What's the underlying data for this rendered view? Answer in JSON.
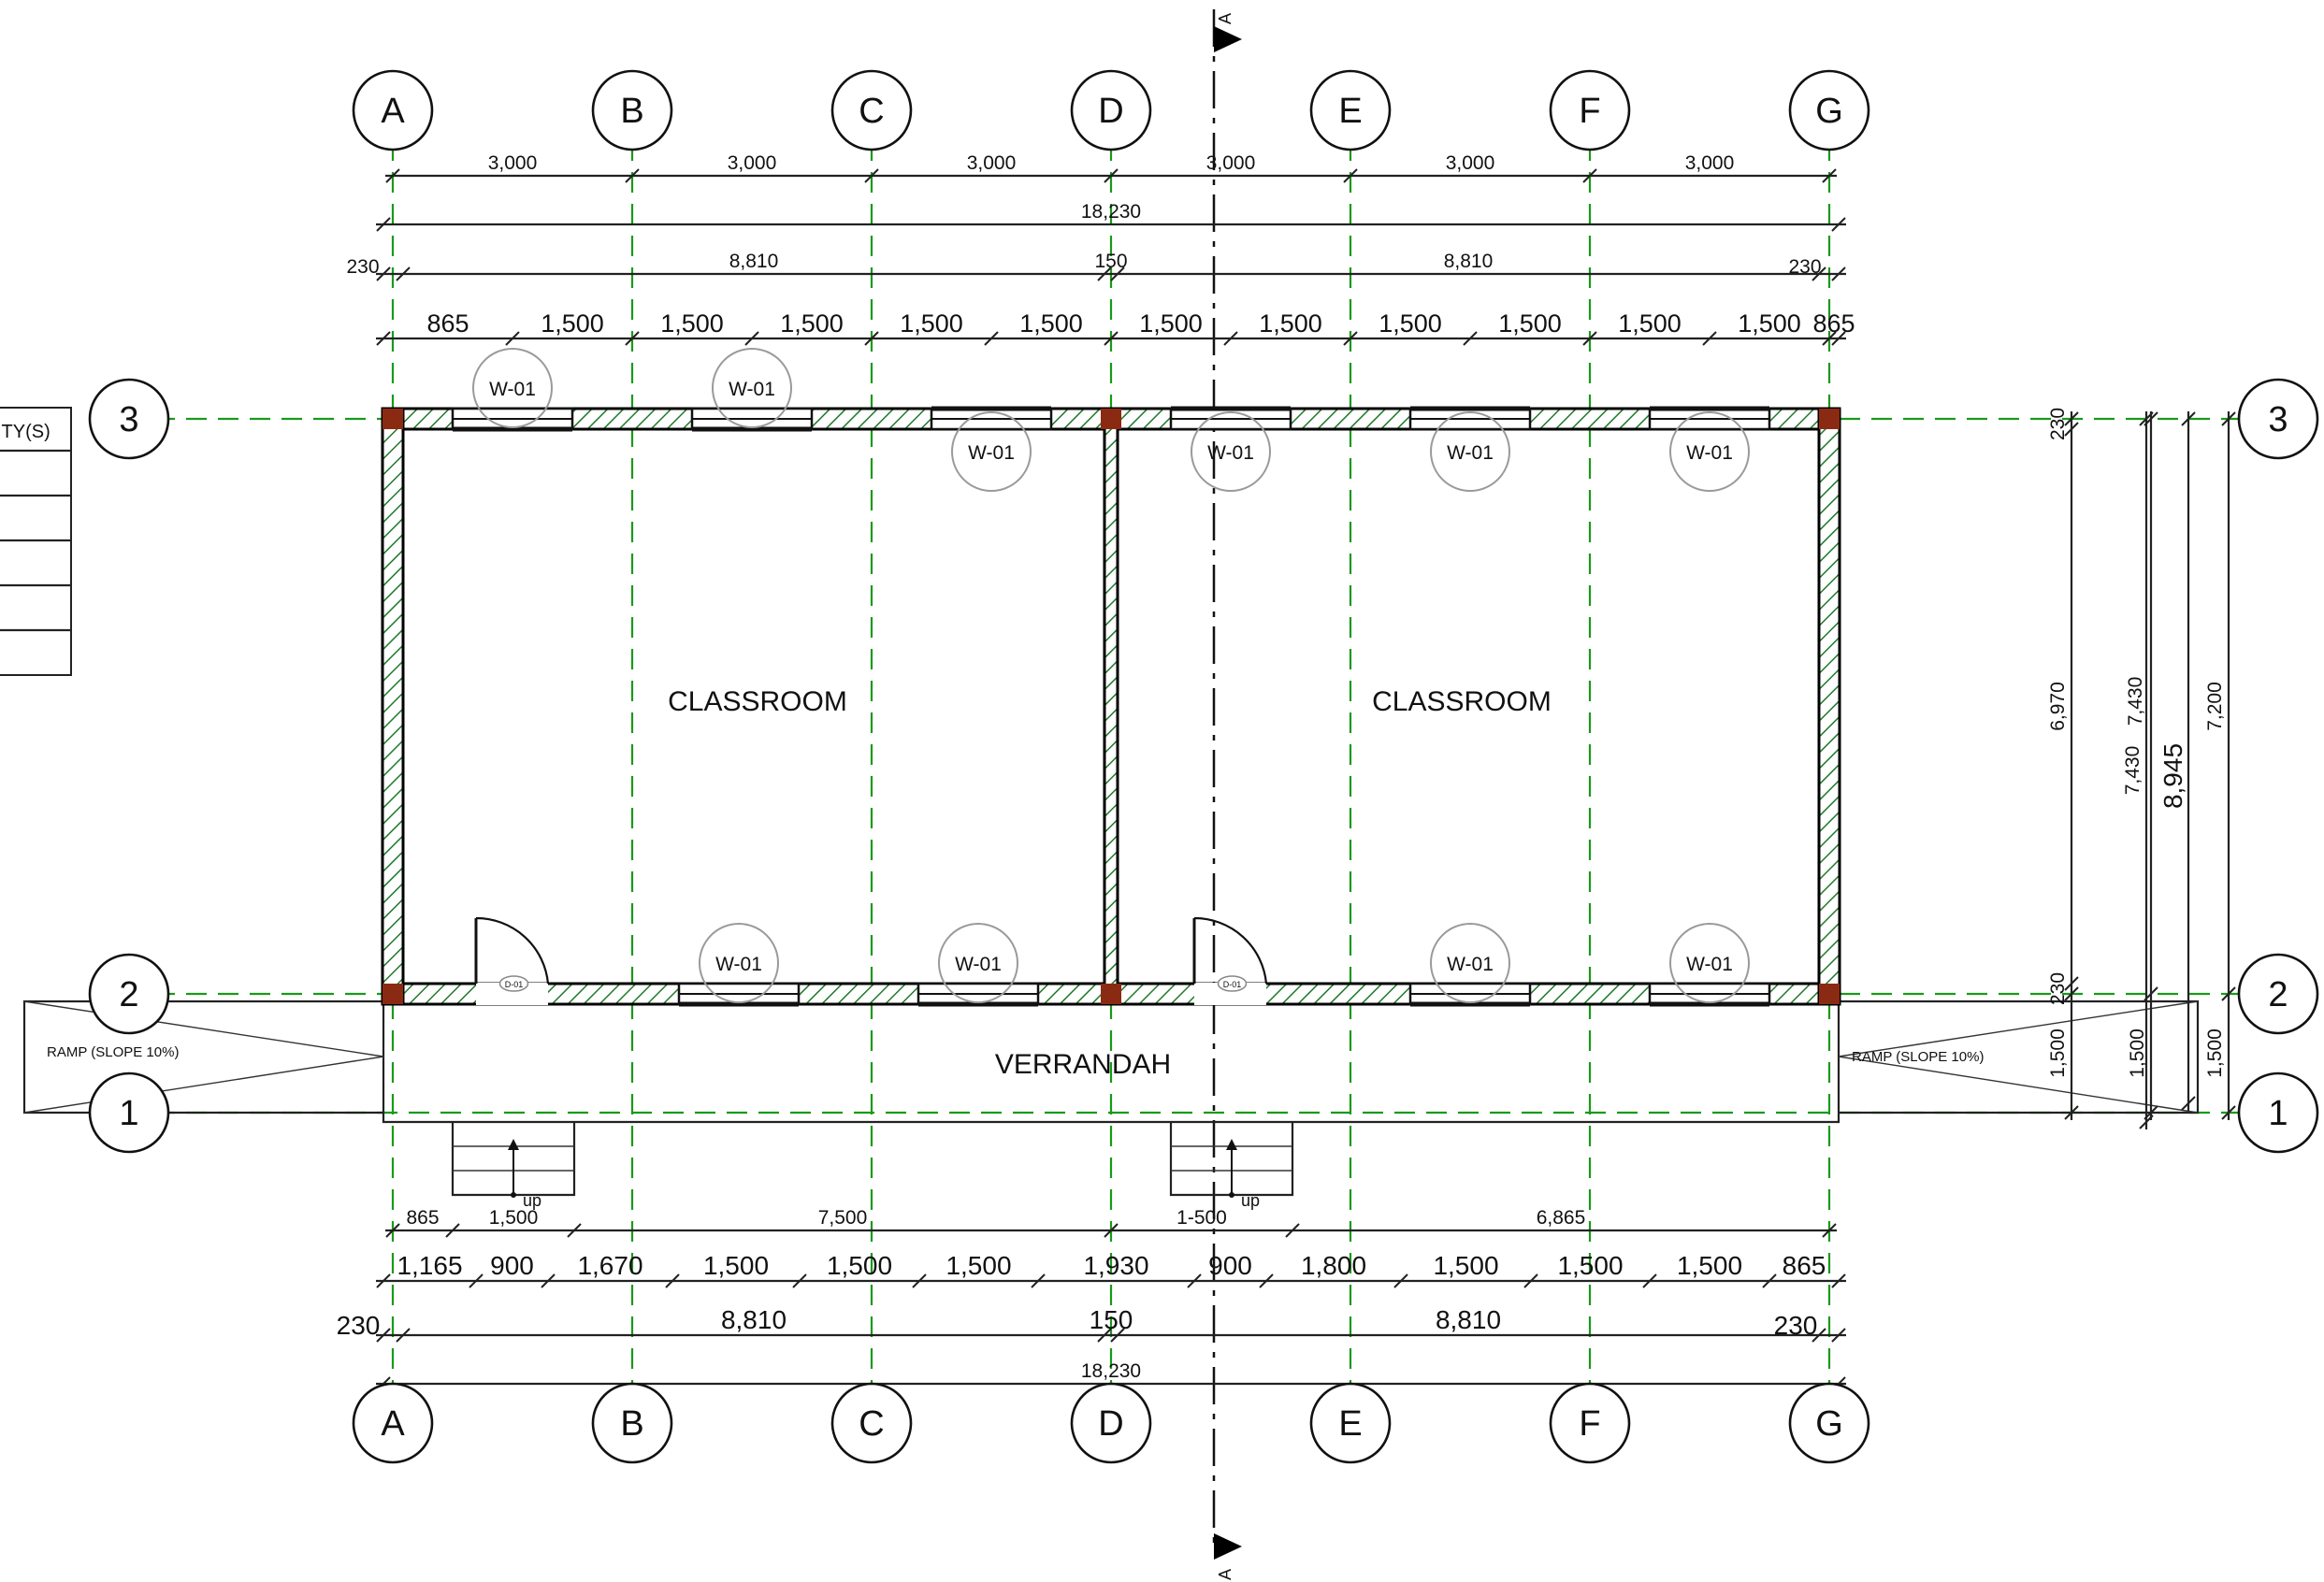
{
  "grid": {
    "columns": [
      "A",
      "B",
      "C",
      "D",
      "E",
      "F",
      "G"
    ],
    "rows": [
      "3",
      "2",
      "1"
    ]
  },
  "dims": {
    "top_row1": [
      "3,000",
      "3,000",
      "3,000",
      "3,000",
      "3,000",
      "3,000"
    ],
    "top_total": "18,230",
    "top_row3": {
      "left_wall": "230",
      "left_room": "8,810",
      "mid_wall": "150",
      "right_room": "8,810",
      "right_wall": "230"
    },
    "top_row4": [
      "865",
      "1,500",
      "1,500",
      "1,500",
      "1,500",
      "1,500",
      "1,500",
      "1,500",
      "1,500",
      "1,500",
      "1,500",
      "1,500",
      "865"
    ],
    "bottom_row1": [
      "865",
      "1,500",
      "7,500",
      "1-500",
      "6,865"
    ],
    "bottom_row2": [
      "1,165",
      "900",
      "1,670",
      "1,500",
      "1,500",
      "1,500",
      "1,930",
      "900",
      "1,800",
      "1,500",
      "1,500",
      "1,500",
      "865"
    ],
    "bottom_row3": {
      "left_wall": "230",
      "left_room": "8,810",
      "mid_wall": "150",
      "right_room": "8,810",
      "right_wall": "230"
    },
    "bottom_total": "18,230",
    "right_col1": {
      "top_wall": "230",
      "room": "6,970",
      "bottom_wall": "230",
      "verandah": "1,500"
    },
    "right_col2": {
      "overall": "8,945"
    },
    "right_col3": {
      "total": "7,430",
      "verandah": "1,500"
    },
    "right_col4": {
      "total": "7,200",
      "verandah": "1,500"
    }
  },
  "rooms": {
    "left": "CLASSROOM",
    "right": "CLASSROOM",
    "verandah": "VERRANDAH",
    "ramp_left": "RAMP (SLOPE 10%)",
    "ramp_right": "RAMP (SLOPE 10%)"
  },
  "window_tag": "W-01",
  "door_tag": "D-01",
  "stair_label": "up",
  "schedule_header": "ITY(S)",
  "section_marker": "A",
  "colors": {
    "grid": "#1a9a1a",
    "column": "#8b2a12",
    "tag": "#9a9a9a"
  }
}
